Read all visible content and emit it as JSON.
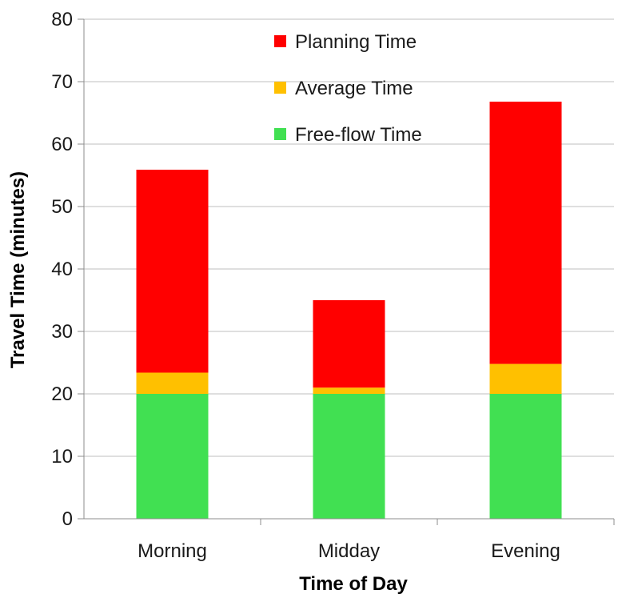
{
  "chart_data": {
    "type": "bar",
    "stacked": true,
    "title": "",
    "xlabel": "Time of Day",
    "ylabel": "Travel Time (minutes)",
    "ylim": [
      0,
      80
    ],
    "yticks": [
      "0",
      "10",
      "20",
      "30",
      "40",
      "50",
      "60",
      "70",
      "80"
    ],
    "grid": true,
    "legend_position": "top-center",
    "categories": [
      "Morning",
      "Midday",
      "Evening"
    ],
    "series": [
      {
        "name": "Free-flow Time",
        "color": "#41E052",
        "values": [
          20,
          20,
          20
        ]
      },
      {
        "name": "Average Time",
        "color": "#FFC000",
        "values": [
          3.4,
          1,
          4.8
        ]
      },
      {
        "name": "Planning Time",
        "color": "#FF0000",
        "values": [
          32.5,
          14,
          42
        ]
      }
    ],
    "legend_order": [
      "Planning Time",
      "Average Time",
      "Free-flow Time"
    ]
  }
}
